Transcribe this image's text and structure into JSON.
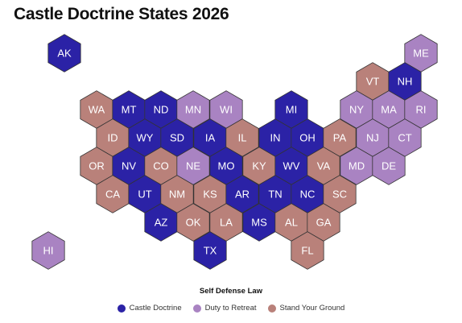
{
  "title": "Castle Doctrine States 2026",
  "legend": {
    "title": "Self Defense Law",
    "items": [
      {
        "label": "Castle Doctrine",
        "color": "#2b22a6"
      },
      {
        "label": "Duty to Retreat",
        "color": "#a983c2"
      },
      {
        "label": "Stand Your Ground",
        "color": "#b9817a"
      }
    ]
  },
  "states": [
    {
      "abbr": "AK",
      "law": "Castle Doctrine"
    },
    {
      "abbr": "ME",
      "law": "Duty to Retreat"
    },
    {
      "abbr": "VT",
      "law": "Stand Your Ground"
    },
    {
      "abbr": "NH",
      "law": "Castle Doctrine"
    },
    {
      "abbr": "WA",
      "law": "Stand Your Ground"
    },
    {
      "abbr": "MT",
      "law": "Castle Doctrine"
    },
    {
      "abbr": "ND",
      "law": "Castle Doctrine"
    },
    {
      "abbr": "MN",
      "law": "Duty to Retreat"
    },
    {
      "abbr": "WI",
      "law": "Duty to Retreat"
    },
    {
      "abbr": "MI",
      "law": "Castle Doctrine"
    },
    {
      "abbr": "NY",
      "law": "Duty to Retreat"
    },
    {
      "abbr": "MA",
      "law": "Duty to Retreat"
    },
    {
      "abbr": "RI",
      "law": "Duty to Retreat"
    },
    {
      "abbr": "ID",
      "law": "Stand Your Ground"
    },
    {
      "abbr": "WY",
      "law": "Castle Doctrine"
    },
    {
      "abbr": "SD",
      "law": "Castle Doctrine"
    },
    {
      "abbr": "IA",
      "law": "Castle Doctrine"
    },
    {
      "abbr": "IL",
      "law": "Stand Your Ground"
    },
    {
      "abbr": "IN",
      "law": "Castle Doctrine"
    },
    {
      "abbr": "OH",
      "law": "Castle Doctrine"
    },
    {
      "abbr": "PA",
      "law": "Stand Your Ground"
    },
    {
      "abbr": "NJ",
      "law": "Duty to Retreat"
    },
    {
      "abbr": "CT",
      "law": "Duty to Retreat"
    },
    {
      "abbr": "OR",
      "law": "Stand Your Ground"
    },
    {
      "abbr": "NV",
      "law": "Castle Doctrine"
    },
    {
      "abbr": "CO",
      "law": "Stand Your Ground"
    },
    {
      "abbr": "NE",
      "law": "Duty to Retreat"
    },
    {
      "abbr": "MO",
      "law": "Castle Doctrine"
    },
    {
      "abbr": "KY",
      "law": "Stand Your Ground"
    },
    {
      "abbr": "WV",
      "law": "Castle Doctrine"
    },
    {
      "abbr": "VA",
      "law": "Stand Your Ground"
    },
    {
      "abbr": "MD",
      "law": "Duty to Retreat"
    },
    {
      "abbr": "DE",
      "law": "Duty to Retreat"
    },
    {
      "abbr": "CA",
      "law": "Stand Your Ground"
    },
    {
      "abbr": "UT",
      "law": "Castle Doctrine"
    },
    {
      "abbr": "NM",
      "law": "Stand Your Ground"
    },
    {
      "abbr": "KS",
      "law": "Stand Your Ground"
    },
    {
      "abbr": "AR",
      "law": "Castle Doctrine"
    },
    {
      "abbr": "TN",
      "law": "Castle Doctrine"
    },
    {
      "abbr": "NC",
      "law": "Castle Doctrine"
    },
    {
      "abbr": "SC",
      "law": "Stand Your Ground"
    },
    {
      "abbr": "AZ",
      "law": "Castle Doctrine"
    },
    {
      "abbr": "OK",
      "law": "Stand Your Ground"
    },
    {
      "abbr": "LA",
      "law": "Stand Your Ground"
    },
    {
      "abbr": "MS",
      "law": "Castle Doctrine"
    },
    {
      "abbr": "AL",
      "law": "Stand Your Ground"
    },
    {
      "abbr": "GA",
      "law": "Stand Your Ground"
    },
    {
      "abbr": "HI",
      "law": "Duty to Retreat"
    },
    {
      "abbr": "TX",
      "law": "Castle Doctrine"
    },
    {
      "abbr": "FL",
      "law": "Stand Your Ground"
    }
  ]
}
